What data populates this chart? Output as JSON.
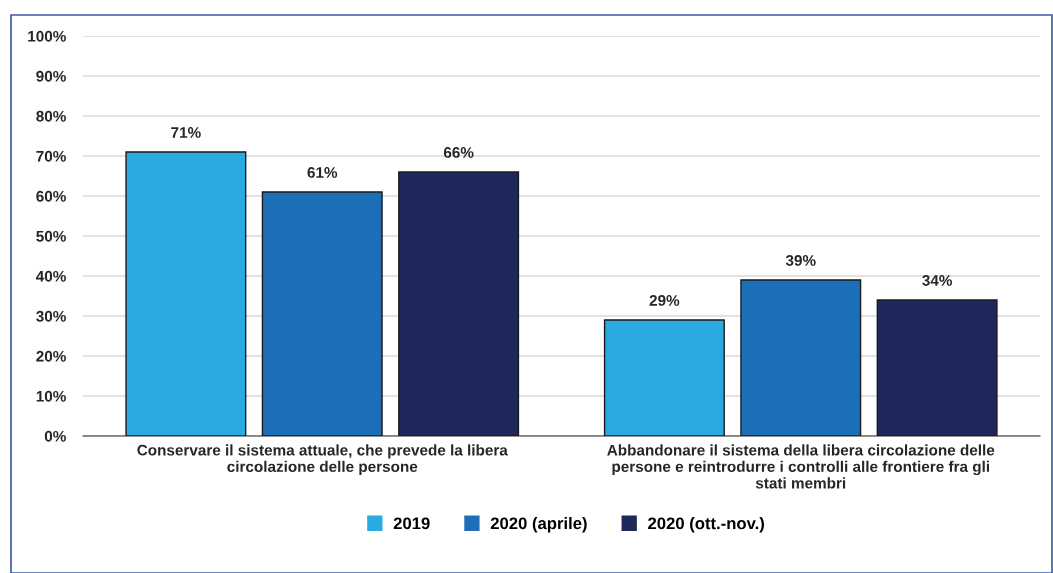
{
  "chart_data": {
    "type": "bar",
    "categories": [
      "Conservare il sistema attuale, che prevede la libera\ncircolazione delle persone",
      "Abbandonare il sistema della libera circolazione delle\npersone e reintrodurre i controlli alle frontiere fra gli\nstati membri"
    ],
    "series": [
      {
        "name": "2019",
        "color": "#29abe2",
        "values": [
          71,
          29
        ],
        "value_labels": [
          "71%",
          "29%"
        ]
      },
      {
        "name": "2020 (aprile)",
        "color": "#1c6fb7",
        "values": [
          61,
          39
        ],
        "value_labels": [
          "61%",
          "39%"
        ]
      },
      {
        "name": "2020 (ott.-nov.)",
        "color": "#1f285b",
        "values": [
          66,
          34
        ],
        "value_labels": [
          "66%",
          "34%"
        ]
      }
    ],
    "ylim": [
      0,
      100
    ],
    "yticks": [
      {
        "value": 0,
        "label": "0%"
      },
      {
        "value": 10,
        "label": "10%"
      },
      {
        "value": 20,
        "label": "20%"
      },
      {
        "value": 30,
        "label": "30%"
      },
      {
        "value": 40,
        "label": "40%"
      },
      {
        "value": 50,
        "label": "50%"
      },
      {
        "value": 60,
        "label": "60%"
      },
      {
        "value": 70,
        "label": "70%"
      },
      {
        "value": 80,
        "label": "80%"
      },
      {
        "value": 90,
        "label": "90%"
      },
      {
        "value": 100,
        "label": "100%"
      }
    ],
    "grid": "y",
    "legend": "bottom"
  }
}
